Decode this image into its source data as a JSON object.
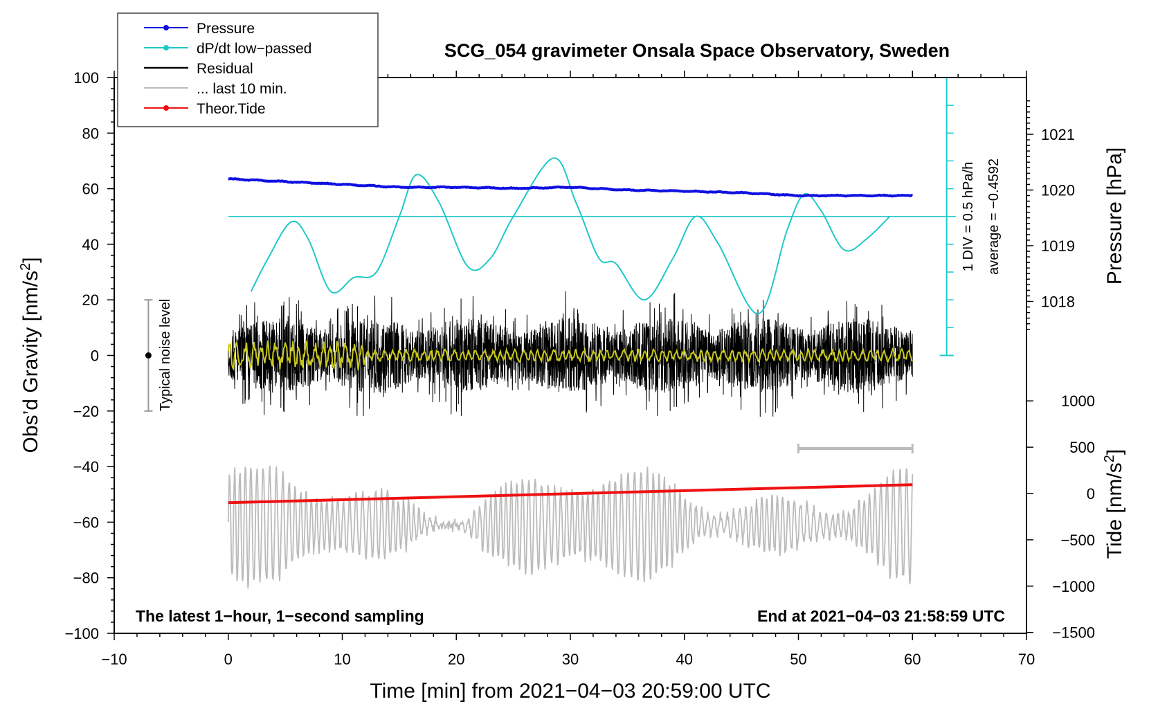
{
  "chart_data": {
    "type": "line",
    "title": "SCG_054 gravimeter Onsala Space Observatory, Sweden",
    "xlabel": "Time [min] from 2021−04−03 20:59:00 UTC",
    "ylabel_left": "Obs’d Gravity [nm/s²]",
    "ylabel_right_pressure": "Pressure [hPa]",
    "ylabel_right_tide": "Tide [nm/s²]",
    "xlim": [
      -10,
      70
    ],
    "ylim": [
      -100,
      100
    ],
    "x_ticks": [
      "−10",
      "0",
      "10",
      "20",
      "30",
      "40",
      "50",
      "60",
      "70"
    ],
    "y_ticks_left": [
      "100",
      "80",
      "60",
      "40",
      "20",
      "0",
      "−20",
      "−40",
      "−60",
      "−80",
      "−100"
    ],
    "pressure_ticks": [
      "1021",
      "1020",
      "1019",
      "1018"
    ],
    "tide_ticks": [
      "1000",
      "500",
      "0",
      "−500",
      "−1000",
      "−1500"
    ],
    "legend": [
      {
        "label": "Pressure",
        "color": "#1010e0",
        "marker": true
      },
      {
        "label": "dP/dt low−passed",
        "color": "#20c8c8",
        "marker": true
      },
      {
        "label": "Residual",
        "color": "#000000",
        "marker": false
      },
      {
        "label": "... last 10 min.",
        "color": "#bbbbbb",
        "marker": false
      },
      {
        "label": "Theor.Tide",
        "color": "#ee1111",
        "marker": true
      }
    ],
    "annotations": {
      "div_label": "1 DIV = 0.5 hPa/h",
      "average_label": "average = −0.4592",
      "noise_label": "Typical noise level",
      "bottom_left": "The latest 1−hour, 1−second sampling",
      "bottom_right": "End at 2021−04−03 21:58:59 UTC"
    },
    "series": [
      {
        "name": "Pressure",
        "unit": "hPa",
        "x": [
          0,
          5,
          10,
          15,
          20,
          25,
          30,
          35,
          40,
          45,
          50,
          55,
          60
        ],
        "values": [
          1020.2,
          1020.15,
          1020.1,
          1020.05,
          1020.05,
          1020.03,
          1020.05,
          1020.0,
          1019.98,
          1019.95,
          1019.9,
          1019.9,
          1019.9
        ]
      },
      {
        "name": "dP/dt low-passed",
        "unit": "plot units",
        "x": [
          2,
          3.5,
          5.5,
          7,
          9,
          11,
          13,
          15,
          16.5,
          18.5,
          21,
          23,
          25,
          28.5,
          30.5,
          32.5,
          34,
          36.5,
          39,
          41,
          43,
          46.5,
          49,
          50.5,
          52,
          54,
          56,
          58
        ],
        "values": [
          23,
          35,
          48,
          42,
          23,
          28,
          30,
          50,
          65,
          55,
          32,
          35,
          50,
          71,
          55,
          35,
          33,
          20,
          35,
          50,
          40,
          15,
          45,
          58,
          52,
          38,
          42,
          50
        ]
      },
      {
        "name": "Residual",
        "unit": "nm/s²",
        "x_range": [
          0,
          60
        ],
        "amplitude": 20
      },
      {
        "name": "... last 10 min.",
        "unit": "nm/s²",
        "x_range": [
          0,
          60
        ]
      },
      {
        "name": "Theor.Tide",
        "unit": "nm/s²",
        "x": [
          0,
          60
        ],
        "values": [
          -53,
          -46.5
        ]
      },
      {
        "name": "Typical noise level",
        "x": -7,
        "values": [
          -20,
          0,
          20
        ]
      }
    ],
    "dpdt_reference_level": 50,
    "recent_window_minutes": [
      50,
      60
    ],
    "grid": false
  }
}
